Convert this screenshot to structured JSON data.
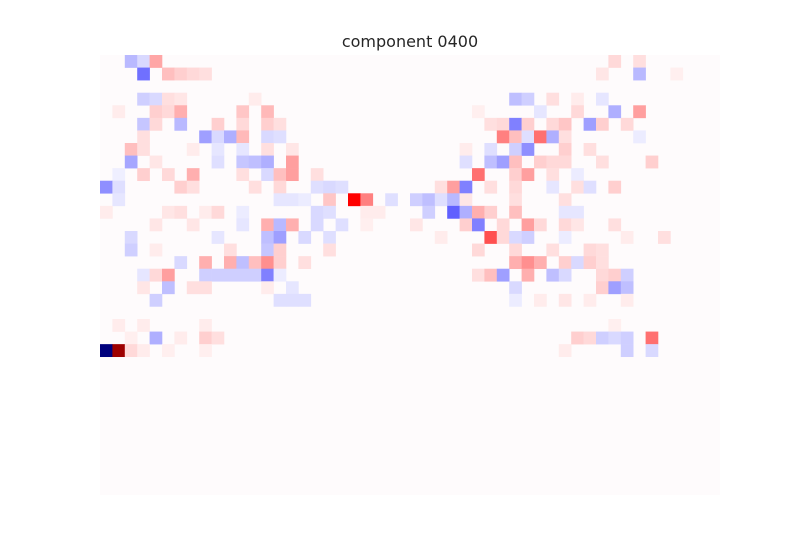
{
  "chart_data": {
    "type": "heatmap",
    "title": "component 0400",
    "xlabel": "",
    "ylabel": "",
    "grid": false,
    "colormap": "seismic",
    "color_range": [
      -1,
      1
    ],
    "n_rows": 35,
    "n_cols": 50,
    "cells": [
      [
        0,
        2,
        -0.22
      ],
      [
        0,
        3,
        -0.12
      ],
      [
        0,
        4,
        0.28
      ],
      [
        0,
        41,
        0.12
      ],
      [
        0,
        43,
        0.1
      ],
      [
        1,
        3,
        -0.45
      ],
      [
        1,
        5,
        0.2
      ],
      [
        1,
        6,
        0.15
      ],
      [
        1,
        7,
        0.12
      ],
      [
        1,
        8,
        0.1
      ],
      [
        1,
        40,
        0.08
      ],
      [
        1,
        43,
        -0.22
      ],
      [
        1,
        46,
        0.05
      ],
      [
        3,
        3,
        -0.15
      ],
      [
        3,
        4,
        -0.12
      ],
      [
        3,
        5,
        0.1
      ],
      [
        3,
        6,
        0.08
      ],
      [
        3,
        12,
        0.06
      ],
      [
        3,
        33,
        -0.2
      ],
      [
        3,
        34,
        -0.15
      ],
      [
        3,
        36,
        0.1
      ],
      [
        3,
        38,
        0.06
      ],
      [
        3,
        40,
        -0.08
      ],
      [
        4,
        1,
        0.06
      ],
      [
        4,
        4,
        0.15
      ],
      [
        4,
        5,
        0.12
      ],
      [
        4,
        6,
        0.25
      ],
      [
        4,
        11,
        0.18
      ],
      [
        4,
        13,
        0.22
      ],
      [
        4,
        30,
        0.05
      ],
      [
        4,
        35,
        -0.08
      ],
      [
        4,
        38,
        0.12
      ],
      [
        4,
        41,
        -0.25
      ],
      [
        4,
        43,
        0.3
      ],
      [
        5,
        3,
        -0.18
      ],
      [
        5,
        4,
        0.12
      ],
      [
        5,
        6,
        -0.22
      ],
      [
        5,
        9,
        0.15
      ],
      [
        5,
        11,
        0.12
      ],
      [
        5,
        13,
        0.15
      ],
      [
        5,
        14,
        0.1
      ],
      [
        5,
        31,
        0.1
      ],
      [
        5,
        32,
        0.12
      ],
      [
        5,
        33,
        -0.4
      ],
      [
        5,
        34,
        0.15
      ],
      [
        5,
        36,
        0.12
      ],
      [
        5,
        37,
        0.18
      ],
      [
        5,
        39,
        -0.3
      ],
      [
        5,
        40,
        0.15
      ],
      [
        5,
        42,
        0.12
      ],
      [
        6,
        3,
        0.1
      ],
      [
        6,
        8,
        -0.3
      ],
      [
        6,
        9,
        -0.12
      ],
      [
        6,
        10,
        -0.25
      ],
      [
        6,
        11,
        0.22
      ],
      [
        6,
        13,
        -0.12
      ],
      [
        6,
        14,
        -0.1
      ],
      [
        6,
        32,
        0.4
      ],
      [
        6,
        33,
        0.2
      ],
      [
        6,
        34,
        -0.1
      ],
      [
        6,
        35,
        0.45
      ],
      [
        6,
        36,
        -0.25
      ],
      [
        6,
        37,
        0.1
      ],
      [
        6,
        43,
        -0.06
      ],
      [
        7,
        2,
        0.2
      ],
      [
        7,
        3,
        0.1
      ],
      [
        7,
        7,
        0.06
      ],
      [
        7,
        9,
        -0.08
      ],
      [
        7,
        11,
        -0.08
      ],
      [
        7,
        13,
        0.1
      ],
      [
        7,
        15,
        0.08
      ],
      [
        7,
        29,
        0.06
      ],
      [
        7,
        31,
        -0.1
      ],
      [
        7,
        33,
        -0.15
      ],
      [
        7,
        34,
        -0.35
      ],
      [
        7,
        37,
        0.15
      ],
      [
        7,
        39,
        0.1
      ],
      [
        8,
        2,
        -0.28
      ],
      [
        8,
        4,
        0.08
      ],
      [
        8,
        9,
        -0.1
      ],
      [
        8,
        11,
        -0.18
      ],
      [
        8,
        12,
        -0.2
      ],
      [
        8,
        13,
        -0.25
      ],
      [
        8,
        15,
        0.3
      ],
      [
        8,
        29,
        -0.1
      ],
      [
        8,
        31,
        -0.2
      ],
      [
        8,
        32,
        -0.3
      ],
      [
        8,
        33,
        0.2
      ],
      [
        8,
        35,
        0.15
      ],
      [
        8,
        36,
        0.12
      ],
      [
        8,
        37,
        0.12
      ],
      [
        8,
        40,
        0.1
      ],
      [
        8,
        44,
        0.15
      ],
      [
        9,
        1,
        -0.05
      ],
      [
        9,
        3,
        0.15
      ],
      [
        9,
        5,
        0.12
      ],
      [
        9,
        7,
        0.25
      ],
      [
        9,
        11,
        0.1
      ],
      [
        9,
        13,
        -0.12
      ],
      [
        9,
        14,
        0.2
      ],
      [
        9,
        15,
        0.3
      ],
      [
        9,
        17,
        0.1
      ],
      [
        9,
        30,
        0.45
      ],
      [
        9,
        33,
        0.15
      ],
      [
        9,
        34,
        0.3
      ],
      [
        9,
        36,
        0.1
      ],
      [
        9,
        38,
        -0.06
      ],
      [
        10,
        0,
        -0.35
      ],
      [
        10,
        1,
        -0.1
      ],
      [
        10,
        6,
        0.15
      ],
      [
        10,
        7,
        0.1
      ],
      [
        10,
        12,
        0.1
      ],
      [
        10,
        14,
        0.12
      ],
      [
        10,
        17,
        -0.1
      ],
      [
        10,
        18,
        -0.12
      ],
      [
        10,
        19,
        -0.1
      ],
      [
        10,
        27,
        0.1
      ],
      [
        10,
        28,
        0.3
      ],
      [
        10,
        29,
        -0.4
      ],
      [
        10,
        31,
        0.1
      ],
      [
        10,
        33,
        0.12
      ],
      [
        10,
        36,
        -0.08
      ],
      [
        10,
        38,
        0.1
      ],
      [
        10,
        39,
        -0.1
      ],
      [
        10,
        41,
        0.15
      ],
      [
        11,
        1,
        -0.08
      ],
      [
        11,
        14,
        -0.08
      ],
      [
        11,
        15,
        -0.08
      ],
      [
        11,
        16,
        -0.06
      ],
      [
        11,
        18,
        0.18
      ],
      [
        11,
        20,
        0.8
      ],
      [
        11,
        21,
        0.4
      ],
      [
        11,
        23,
        -0.1
      ],
      [
        11,
        25,
        -0.15
      ],
      [
        11,
        26,
        -0.2
      ],
      [
        11,
        27,
        -0.1
      ],
      [
        11,
        28,
        -0.22
      ],
      [
        11,
        29,
        0.08
      ],
      [
        11,
        33,
        0.1
      ],
      [
        11,
        37,
        0.1
      ],
      [
        12,
        0,
        0.06
      ],
      [
        12,
        5,
        0.08
      ],
      [
        12,
        6,
        0.1
      ],
      [
        12,
        8,
        0.06
      ],
      [
        12,
        9,
        0.12
      ],
      [
        12,
        11,
        -0.06
      ],
      [
        12,
        17,
        -0.12
      ],
      [
        12,
        18,
        -0.1
      ],
      [
        12,
        21,
        0.06
      ],
      [
        12,
        22,
        0.06
      ],
      [
        12,
        26,
        -0.15
      ],
      [
        12,
        28,
        -0.5
      ],
      [
        12,
        29,
        -0.25
      ],
      [
        12,
        30,
        0.25
      ],
      [
        12,
        31,
        0.15
      ],
      [
        12,
        33,
        0.2
      ],
      [
        12,
        37,
        -0.08
      ],
      [
        12,
        38,
        -0.08
      ],
      [
        13,
        4,
        0.08
      ],
      [
        13,
        7,
        0.08
      ],
      [
        13,
        11,
        -0.08
      ],
      [
        13,
        13,
        0.25
      ],
      [
        13,
        14,
        -0.22
      ],
      [
        13,
        15,
        0.25
      ],
      [
        13,
        17,
        -0.12
      ],
      [
        13,
        19,
        -0.1
      ],
      [
        13,
        21,
        0.05
      ],
      [
        13,
        25,
        0.08
      ],
      [
        13,
        29,
        0.15
      ],
      [
        13,
        30,
        -0.4
      ],
      [
        13,
        32,
        0.12
      ],
      [
        13,
        34,
        0.3
      ],
      [
        13,
        35,
        0.12
      ],
      [
        13,
        37,
        0.12
      ],
      [
        13,
        38,
        0.08
      ],
      [
        13,
        41,
        0.1
      ],
      [
        14,
        2,
        -0.12
      ],
      [
        14,
        9,
        -0.08
      ],
      [
        14,
        13,
        -0.2
      ],
      [
        14,
        14,
        -0.3
      ],
      [
        14,
        16,
        -0.12
      ],
      [
        14,
        18,
        -0.1
      ],
      [
        14,
        27,
        0.06
      ],
      [
        14,
        31,
        0.55
      ],
      [
        14,
        32,
        0.12
      ],
      [
        14,
        33,
        -0.12
      ],
      [
        14,
        34,
        -0.15
      ],
      [
        14,
        37,
        -0.06
      ],
      [
        14,
        42,
        0.06
      ],
      [
        14,
        45,
        0.1
      ],
      [
        15,
        2,
        -0.15
      ],
      [
        15,
        4,
        0.06
      ],
      [
        15,
        10,
        0.1
      ],
      [
        15,
        13,
        -0.18
      ],
      [
        15,
        14,
        0.15
      ],
      [
        15,
        18,
        0.1
      ],
      [
        15,
        30,
        0.12
      ],
      [
        15,
        33,
        0.12
      ],
      [
        15,
        36,
        0.1
      ],
      [
        15,
        39,
        0.12
      ],
      [
        15,
        40,
        0.1
      ],
      [
        16,
        6,
        -0.12
      ],
      [
        16,
        8,
        0.25
      ],
      [
        16,
        10,
        0.25
      ],
      [
        16,
        11,
        -0.2
      ],
      [
        16,
        12,
        0.2
      ],
      [
        16,
        13,
        0.35
      ],
      [
        16,
        14,
        0.15
      ],
      [
        16,
        16,
        0.1
      ],
      [
        16,
        33,
        0.25
      ],
      [
        16,
        34,
        0.35
      ],
      [
        16,
        35,
        0.25
      ],
      [
        16,
        37,
        0.15
      ],
      [
        16,
        38,
        -0.12
      ],
      [
        16,
        39,
        0.15
      ],
      [
        16,
        40,
        0.1
      ],
      [
        17,
        3,
        -0.08
      ],
      [
        17,
        4,
        0.12
      ],
      [
        17,
        5,
        0.3
      ],
      [
        17,
        8,
        -0.15
      ],
      [
        17,
        9,
        -0.15
      ],
      [
        17,
        10,
        -0.15
      ],
      [
        17,
        11,
        -0.15
      ],
      [
        17,
        12,
        -0.15
      ],
      [
        17,
        13,
        -0.4
      ],
      [
        17,
        14,
        -0.06
      ],
      [
        17,
        30,
        0.1
      ],
      [
        17,
        31,
        0.2
      ],
      [
        17,
        32,
        -0.3
      ],
      [
        17,
        34,
        0.25
      ],
      [
        17,
        36,
        -0.2
      ],
      [
        17,
        37,
        -0.12
      ],
      [
        17,
        40,
        0.12
      ],
      [
        17,
        41,
        0.15
      ],
      [
        17,
        42,
        -0.15
      ],
      [
        18,
        3,
        0.08
      ],
      [
        18,
        5,
        -0.2
      ],
      [
        18,
        7,
        0.1
      ],
      [
        18,
        8,
        0.1
      ],
      [
        18,
        13,
        0.06
      ],
      [
        18,
        15,
        -0.08
      ],
      [
        18,
        33,
        -0.12
      ],
      [
        18,
        40,
        0.15
      ],
      [
        18,
        41,
        -0.3
      ],
      [
        18,
        42,
        -0.2
      ],
      [
        19,
        4,
        -0.15
      ],
      [
        19,
        14,
        -0.1
      ],
      [
        19,
        15,
        -0.1
      ],
      [
        19,
        16,
        -0.1
      ],
      [
        19,
        33,
        -0.06
      ],
      [
        19,
        35,
        0.06
      ],
      [
        19,
        37,
        0.08
      ],
      [
        19,
        39,
        0.06
      ],
      [
        19,
        42,
        0.06
      ],
      [
        21,
        1,
        0.06
      ],
      [
        21,
        3,
        0.06
      ],
      [
        21,
        8,
        0.06
      ],
      [
        21,
        41,
        0.05
      ],
      [
        22,
        2,
        0.05
      ],
      [
        22,
        4,
        -0.25
      ],
      [
        22,
        6,
        0.06
      ],
      [
        22,
        8,
        0.15
      ],
      [
        22,
        9,
        0.1
      ],
      [
        22,
        38,
        0.15
      ],
      [
        22,
        39,
        0.12
      ],
      [
        22,
        40,
        -0.15
      ],
      [
        22,
        41,
        -0.12
      ],
      [
        22,
        42,
        -0.15
      ],
      [
        22,
        44,
        0.45
      ],
      [
        23,
        0,
        -0.95
      ],
      [
        23,
        1,
        0.95
      ],
      [
        23,
        2,
        0.12
      ],
      [
        23,
        3,
        0.06
      ],
      [
        23,
        5,
        0.05
      ],
      [
        23,
        8,
        0.05
      ],
      [
        23,
        37,
        0.06
      ],
      [
        23,
        42,
        -0.15
      ],
      [
        23,
        44,
        -0.12
      ]
    ]
  }
}
